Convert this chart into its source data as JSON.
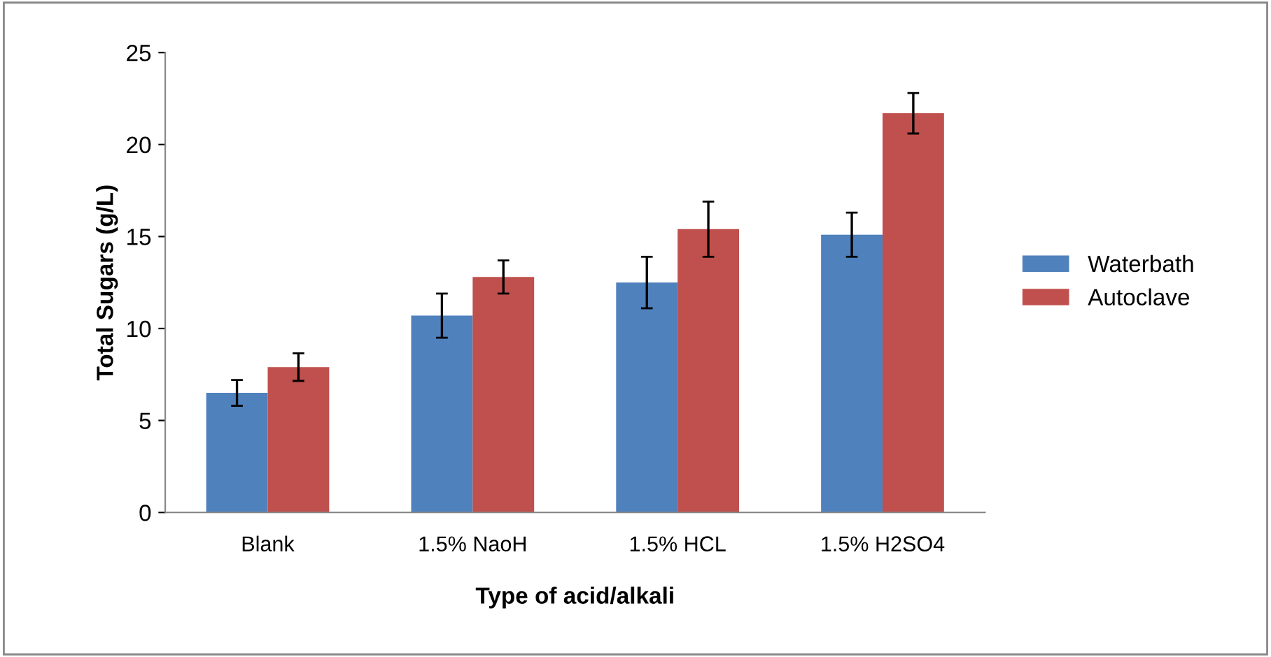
{
  "chart_data": {
    "type": "bar",
    "xlabel": "Type of acid/alkali",
    "ylabel": "Total Sugars (g/L)",
    "categories": [
      "Blank",
      "1.5% NaoH",
      "1.5% HCL",
      "1.5% H2SO4"
    ],
    "series": [
      {
        "name": "Waterbath",
        "color": "#4f81bd",
        "values": [
          6.5,
          10.7,
          12.5,
          15.1
        ],
        "errors": [
          0.7,
          1.2,
          1.4,
          1.2
        ]
      },
      {
        "name": "Autoclave",
        "color": "#c0504d",
        "values": [
          7.9,
          12.8,
          15.4,
          21.7
        ],
        "errors": [
          0.75,
          0.9,
          1.5,
          1.1
        ]
      }
    ],
    "ylim": [
      0,
      25
    ],
    "yticks": [
      0,
      5,
      10,
      15,
      20,
      25
    ],
    "legend": "right"
  }
}
